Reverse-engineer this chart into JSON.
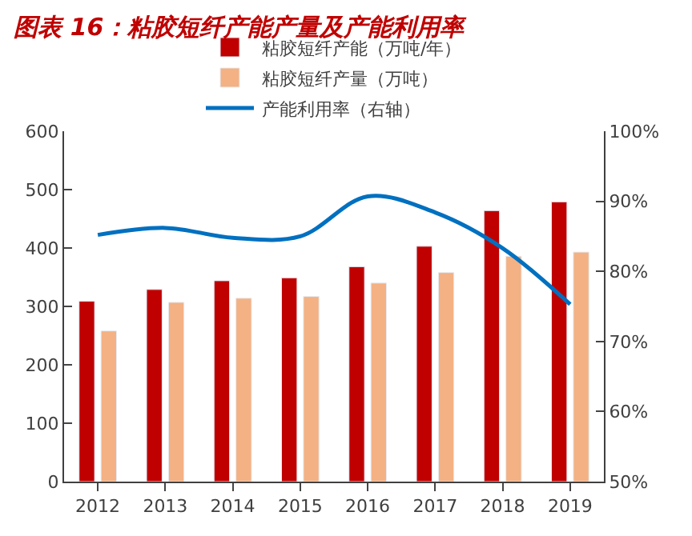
{
  "chart_data": {
    "type": "bar",
    "title": "图表 16：粘胶短纤产能产量及产能利用率",
    "categories": [
      "2012",
      "2013",
      "2014",
      "2015",
      "2016",
      "2017",
      "2018",
      "2019"
    ],
    "series": [
      {
        "name": "粘胶短纤产能（万吨/年）",
        "color": "#c00000",
        "values": [
          309,
          329,
          344,
          349,
          368,
          403,
          464,
          479
        ]
      },
      {
        "name": "粘胶短纤产量（万吨）",
        "color": "#f4b183",
        "values": [
          258,
          307,
          314,
          317,
          340,
          358,
          386,
          393
        ]
      },
      {
        "name": "产能利用率（右轴）",
        "type": "line",
        "axis": "y2",
        "color": "#0070c0",
        "line_style": "solid",
        "values": [
          85.2,
          86.2,
          84.8,
          85.0,
          90.7,
          88.4,
          83.3,
          75.3
        ]
      }
    ],
    "ylim": [
      0,
      600
    ],
    "yticks": [
      0,
      100,
      200,
      300,
      400,
      500,
      600
    ],
    "y2lim": [
      50,
      100
    ],
    "y2ticks": [
      {
        "value": 50,
        "label": "50%"
      },
      {
        "value": 60,
        "label": "60%"
      },
      {
        "value": 70,
        "label": "70%"
      },
      {
        "value": 80,
        "label": "80%"
      },
      {
        "value": 90,
        "label": "90%"
      },
      {
        "value": 100,
        "label": "100%"
      }
    ],
    "legend": "top",
    "marker": "none"
  }
}
